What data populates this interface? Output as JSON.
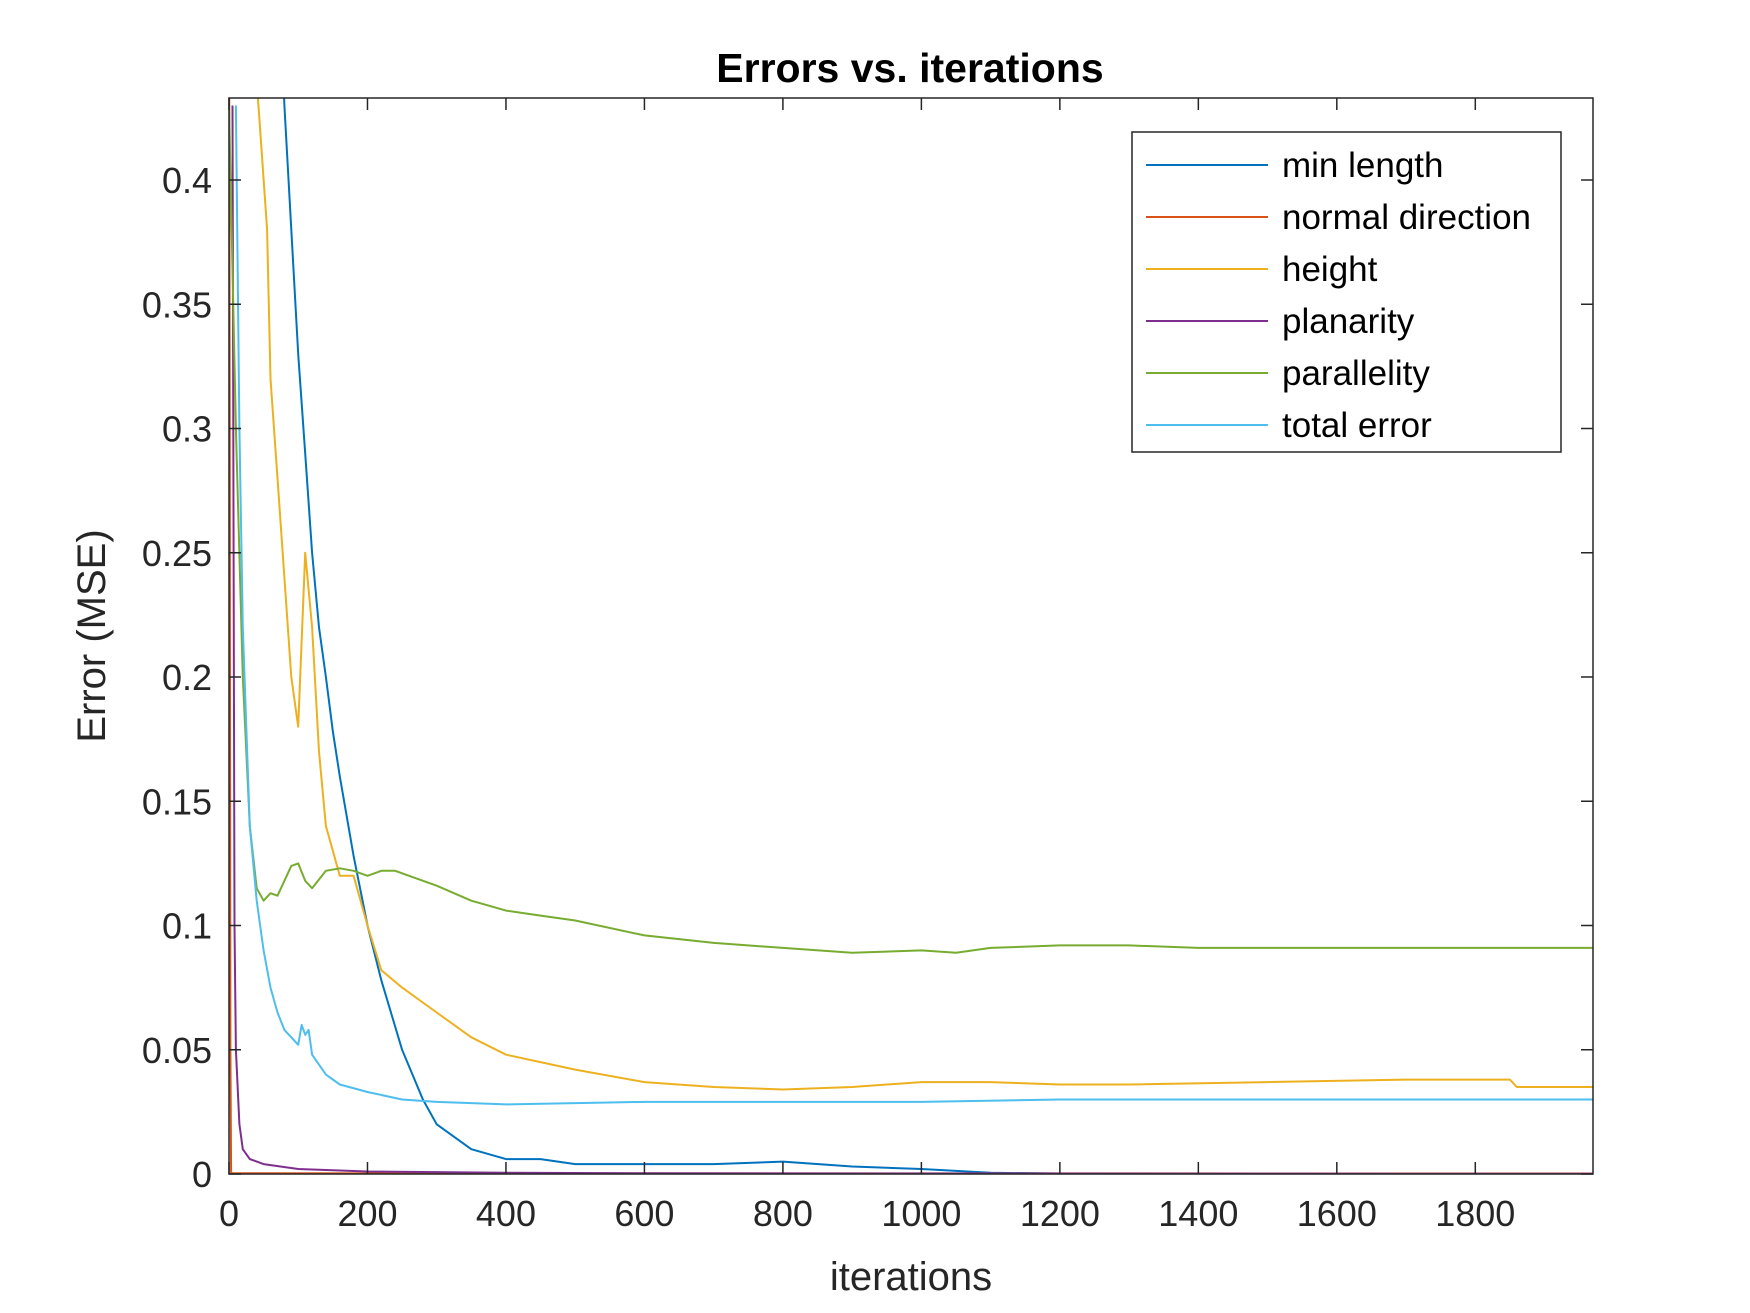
{
  "chart_data": {
    "type": "line",
    "title": "Errors vs. iterations",
    "xlabel": "iterations",
    "ylabel": "Error (MSE)",
    "xlim": [
      0,
      1970
    ],
    "ylim": [
      0,
      0.433
    ],
    "xticks": [
      0,
      200,
      400,
      600,
      800,
      1000,
      1200,
      1400,
      1600,
      1800
    ],
    "xtick_labels": [
      "0",
      "200",
      "400",
      "600",
      "800",
      "1000",
      "1200",
      "1400",
      "1600",
      "1800"
    ],
    "yticks": [
      0,
      0.05,
      0.1,
      0.15,
      0.2,
      0.25,
      0.3,
      0.35,
      0.4
    ],
    "ytick_labels": [
      "0",
      "0.05",
      "0.1",
      "0.15",
      "0.2",
      "0.25",
      "0.3",
      "0.35",
      "0.4"
    ],
    "grid": false,
    "legend_position": "top-right",
    "series": [
      {
        "name": "min length",
        "color": "#0072BD",
        "x": [
          70,
          80,
          90,
          100,
          110,
          120,
          130,
          140,
          150,
          160,
          180,
          200,
          220,
          250,
          280,
          300,
          350,
          400,
          450,
          500,
          600,
          700,
          800,
          900,
          1000,
          1100,
          1200,
          1400,
          1600,
          1800,
          1970
        ],
        "y": [
          0.5,
          0.43,
          0.38,
          0.33,
          0.29,
          0.25,
          0.22,
          0.2,
          0.178,
          0.16,
          0.128,
          0.1,
          0.078,
          0.05,
          0.03,
          0.02,
          0.01,
          0.006,
          0.006,
          0.004,
          0.004,
          0.004,
          0.005,
          0.003,
          0.002,
          0.0005,
          0.0002,
          0.0001,
          0.0001,
          0.0001,
          0.0001
        ]
      },
      {
        "name": "normal direction",
        "color": "#D95319",
        "x": [
          0,
          1,
          2,
          3,
          1970
        ],
        "y": [
          0.5,
          0.3,
          0.05,
          0.0003,
          0.0002
        ]
      },
      {
        "name": "height",
        "color": "#EDB120",
        "x": [
          40,
          45,
          55,
          60,
          70,
          80,
          90,
          100,
          110,
          120,
          130,
          140,
          150,
          160,
          180,
          200,
          220,
          250,
          300,
          350,
          400,
          500,
          600,
          700,
          800,
          900,
          950,
          1000,
          1100,
          1200,
          1300,
          1500,
          1700,
          1850,
          1860,
          1970
        ],
        "y": [
          0.44,
          0.42,
          0.38,
          0.32,
          0.28,
          0.24,
          0.2,
          0.18,
          0.25,
          0.22,
          0.17,
          0.14,
          0.13,
          0.12,
          0.12,
          0.1,
          0.082,
          0.075,
          0.065,
          0.055,
          0.048,
          0.042,
          0.037,
          0.035,
          0.034,
          0.035,
          0.036,
          0.037,
          0.037,
          0.036,
          0.036,
          0.037,
          0.038,
          0.038,
          0.035,
          0.035
        ]
      },
      {
        "name": "planarity",
        "color": "#7E2F8E",
        "x": [
          5,
          8,
          10,
          15,
          20,
          30,
          50,
          100,
          200,
          400,
          600,
          1000,
          1970
        ],
        "y": [
          0.43,
          0.1,
          0.05,
          0.02,
          0.01,
          0.006,
          0.004,
          0.002,
          0.001,
          0.0005,
          0.0003,
          0.0002,
          0.0001
        ]
      },
      {
        "name": "parallelity",
        "color": "#77AC30",
        "x": [
          0,
          10,
          20,
          30,
          40,
          50,
          60,
          70,
          80,
          90,
          100,
          110,
          120,
          140,
          160,
          180,
          200,
          220,
          240,
          260,
          300,
          350,
          400,
          450,
          500,
          600,
          700,
          800,
          900,
          1000,
          1050,
          1100,
          1200,
          1300,
          1400,
          1600,
          1800,
          1970
        ],
        "y": [
          0.43,
          0.3,
          0.2,
          0.14,
          0.115,
          0.11,
          0.113,
          0.112,
          0.118,
          0.124,
          0.125,
          0.118,
          0.115,
          0.122,
          0.123,
          0.122,
          0.12,
          0.122,
          0.122,
          0.12,
          0.116,
          0.11,
          0.106,
          0.104,
          0.102,
          0.096,
          0.093,
          0.091,
          0.089,
          0.09,
          0.089,
          0.091,
          0.092,
          0.092,
          0.091,
          0.091,
          0.091,
          0.091
        ]
      },
      {
        "name": "total error",
        "color": "#4DBEEE",
        "x": [
          10,
          15,
          20,
          30,
          40,
          50,
          60,
          70,
          80,
          90,
          100,
          105,
          110,
          115,
          120,
          140,
          160,
          200,
          250,
          300,
          400,
          600,
          800,
          1000,
          1200,
          1400,
          1600,
          1800,
          1970
        ],
        "y": [
          0.43,
          0.3,
          0.22,
          0.14,
          0.11,
          0.09,
          0.075,
          0.065,
          0.058,
          0.055,
          0.052,
          0.06,
          0.056,
          0.058,
          0.048,
          0.04,
          0.036,
          0.033,
          0.03,
          0.029,
          0.028,
          0.029,
          0.029,
          0.029,
          0.03,
          0.03,
          0.03,
          0.03,
          0.03
        ]
      }
    ]
  }
}
